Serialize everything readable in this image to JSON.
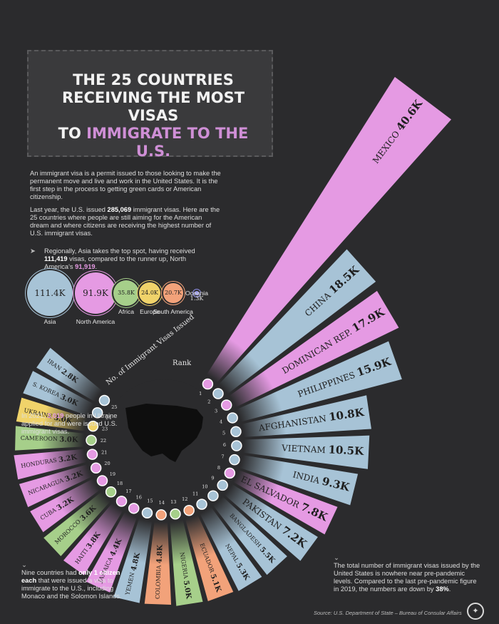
{
  "title": {
    "line1": "THE 25 COUNTRIES",
    "line2": "RECEIVING THE MOST VISAS",
    "line3a": "TO ",
    "line3b": "IMMIGRATE TO THE U.S."
  },
  "intro": {
    "p1": "An immigrant visa is a permit issued to those looking to make the permanent move and live and work in the United States. It is the first step in the process to getting green cards or American citizenship.",
    "p2a": "Last year, the U.S. issued ",
    "p2b": "285,069",
    "p2c": " immigrant visas. Here are the 25 countries where people are still aiming for the American dream and where citizens are receiving the highest number of U.S. immigrant visas."
  },
  "region_note": {
    "a": "Regionally, Asia takes the top spot, having received ",
    "b": "111,419",
    "c": " visas, compared to the runner up, North America's ",
    "d": "91,919",
    "e": "."
  },
  "regions": [
    {
      "name": "Asia",
      "value_label": "111.4K",
      "value": 111419,
      "color": "#a7c3d6"
    },
    {
      "name": "North America",
      "value_label": "91.9K",
      "value": 91919,
      "color": "#e59ae3"
    },
    {
      "name": "Africa",
      "value_label": "35.8K",
      "value": 35800,
      "color": "#a6cf8a"
    },
    {
      "name": "Europe",
      "value_label": "24.0K",
      "value": 24000,
      "color": "#f0d36a"
    },
    {
      "name": "South America",
      "value_label": "20.7K",
      "value": 20700,
      "color": "#f2a27a"
    },
    {
      "name": "Oceania",
      "value_label": "1.3K",
      "value": 1300,
      "color": "#8f8fe8"
    }
  ],
  "ukraine_note": {
    "a": "In 2021, ",
    "b": "3,019",
    "c": " people in Ukraine applied for and were issued U.S. immigrant visas."
  },
  "nine_note": {
    "a": "Nine countries had ",
    "b": "only 1 citizen each",
    "c": " that were issued a visa to immigrate to the U.S., including Monaco and the Solomon Islands."
  },
  "total_note": {
    "a": "The total number of immigrant visas issued by the United States is nowhere near pre-pandemic levels. Compared to the last pre-pandemic figure in 2019, the numbers are down by ",
    "b": "38%",
    "c": "."
  },
  "legend": {
    "visas_label": "No. of Immigrant Visas Issued",
    "rank_label": "Rank"
  },
  "source": "Source: U.S. Department of State – Bureau of Consular Affairs",
  "colors": {
    "background": "#2b2b2d",
    "Asia": "#a7c3d6",
    "North America": "#e59ae3",
    "Africa": "#a6cf8a",
    "Europe": "#f0d36a",
    "South America": "#f2a27a"
  },
  "chart_data": {
    "type": "bar",
    "title": "THE 25 COUNTRIES RECEIVING THE MOST VISAS TO IMMIGRATE TO THE U.S.",
    "categories": [
      "MEXICO",
      "CHINA",
      "DOMINICAN REP.",
      "PHILIPPINES",
      "AFGHANISTAN",
      "VIETNAM",
      "INDIA",
      "EL SALVADOR",
      "PAKISTAN",
      "BANGLADESH",
      "NEPAL",
      "ECUADOR",
      "NIGERIA",
      "COLOMBIA",
      "YEMEN",
      "JAMAICA",
      "HAITI",
      "MOROCCO",
      "CUBA",
      "NICARAGUA",
      "HONDURAS",
      "CAMEROON",
      "UKRAINE",
      "S. KOREA",
      "IRAN"
    ],
    "series": [
      {
        "values": [
          40.6,
          18.5,
          17.9,
          15.9,
          10.8,
          10.5,
          9.3,
          7.8,
          7.2,
          5.5,
          5.3,
          5.1,
          5.0,
          4.8,
          4.8,
          4.4,
          3.8,
          3.6,
          3.2,
          3.2,
          3.2,
          3.0,
          3.0,
          3.0,
          2.8
        ]
      }
    ],
    "value_labels": [
      "40.6K",
      "18.5K",
      "17.9K",
      "15.9K",
      "10.8K",
      "10.5K",
      "9.3K",
      "7.8K",
      "7.2K",
      "5.5K",
      "5.3K",
      "5.1K",
      "5.0K",
      "4.8K",
      "4.8K",
      "4.4K",
      "3.8K",
      "3.6K",
      "3.2K",
      "3.2K",
      "3.2K",
      "3.0K",
      "3.0K",
      "3.0K",
      "2.8K"
    ],
    "ranks": [
      "1",
      "2",
      "3",
      "4",
      "5",
      "6",
      "7",
      "8",
      "9",
      "10",
      "11",
      "12",
      "13",
      "14",
      "15",
      "16",
      "17",
      "18",
      "19",
      "20",
      "21",
      "22",
      "23",
      "24",
      "25"
    ],
    "regions": [
      "North America",
      "Asia",
      "North America",
      "Asia",
      "Asia",
      "Asia",
      "Asia",
      "North America",
      "Asia",
      "Asia",
      "Asia",
      "South America",
      "Africa",
      "South America",
      "Asia",
      "North America",
      "North America",
      "Africa",
      "North America",
      "North America",
      "North America",
      "Africa",
      "Europe",
      "Asia",
      "Asia"
    ]
  }
}
